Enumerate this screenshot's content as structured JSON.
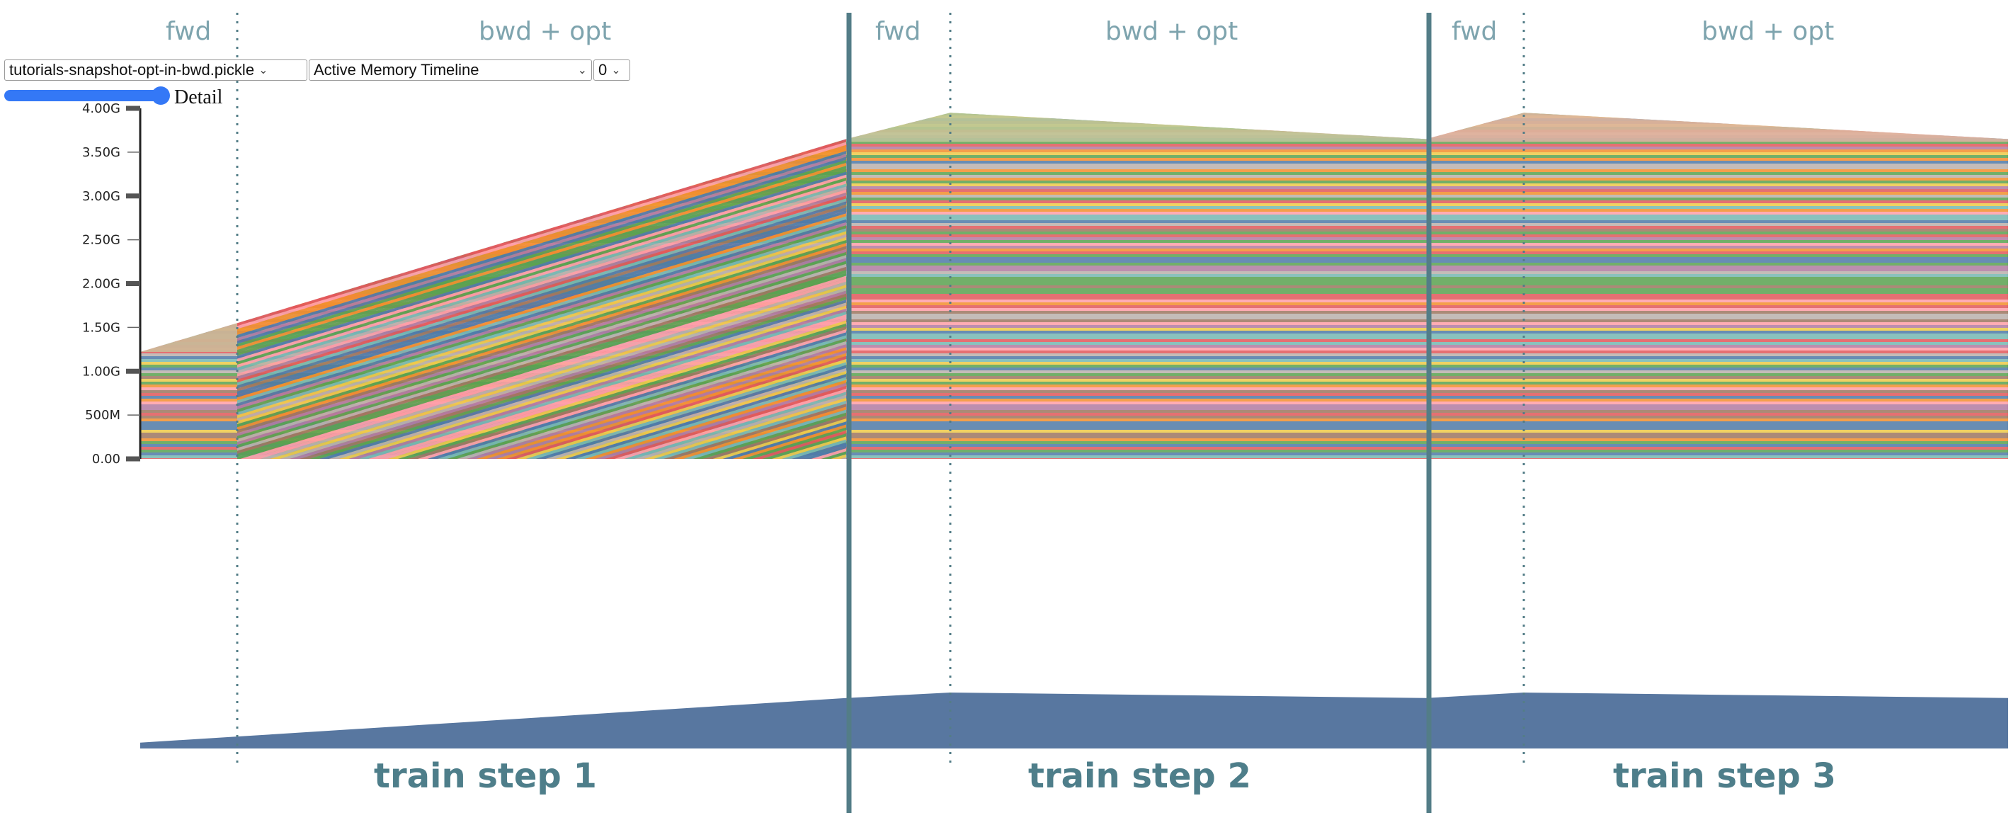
{
  "controls": {
    "snapshot_select": "tutorials-snapshot-opt-in-bwd.pickle",
    "view_select": "Active Memory Timeline",
    "device_select": "0",
    "detail_label": "Detail",
    "detail_slider_value": 1.0
  },
  "annotations": {
    "phases": [
      "fwd",
      "bwd + opt",
      "fwd",
      "bwd + opt",
      "fwd",
      "bwd + opt"
    ],
    "steps": [
      "train step 1",
      "train step 2",
      "train step 3"
    ]
  },
  "colors": {
    "separator": "#537d87",
    "phase_text": "#7ea4ae",
    "step_text": "#4e7e8a",
    "overview": "#5877a0",
    "slider": "#3478f6"
  },
  "chart_data": {
    "type": "area",
    "title": "",
    "xlabel": "",
    "ylabel": "",
    "ylim": [
      0,
      4.0
    ],
    "y_unit": "GB",
    "yticks": [
      "0.00",
      "500M",
      "1.00G",
      "1.50G",
      "2.00G",
      "2.50G",
      "3.00G",
      "3.50G",
      "4.00G"
    ],
    "ytick_values": [
      0,
      0.5,
      1.0,
      1.5,
      2.0,
      2.5,
      3.0,
      3.5,
      4.0
    ],
    "grid": false,
    "legend": "none",
    "stacked_allocations": true,
    "total_memory_gb": [
      {
        "point": "step 1 start",
        "value": 1.22
      },
      {
        "point": "step 1 fwd end",
        "value": 1.55
      },
      {
        "point": "step 1 end",
        "value": 3.65
      },
      {
        "point": "step 2 fwd end",
        "value": 3.95
      },
      {
        "point": "step 2 end",
        "value": 3.65
      },
      {
        "point": "step 3 fwd end",
        "value": 3.95
      },
      {
        "point": "step 3 end",
        "value": 3.65
      }
    ]
  }
}
